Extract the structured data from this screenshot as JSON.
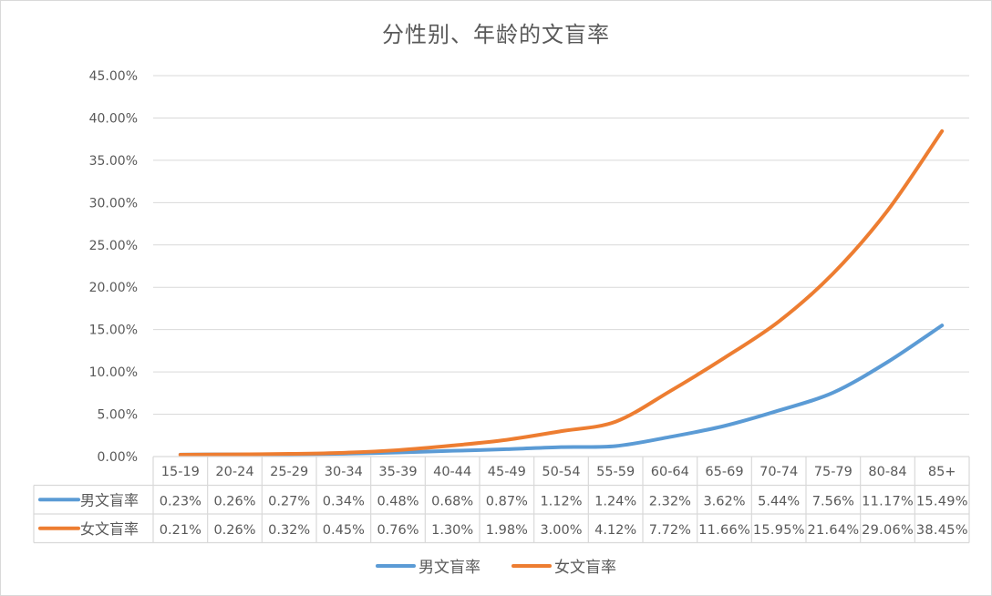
{
  "chart_data": {
    "type": "line",
    "title": "分性别、年龄的文盲率",
    "xlabel": "",
    "ylabel": "",
    "categories": [
      "15-19",
      "20-24",
      "25-29",
      "30-34",
      "35-39",
      "40-44",
      "45-49",
      "50-54",
      "55-59",
      "60-64",
      "65-69",
      "70-74",
      "75-79",
      "80-84",
      "85+"
    ],
    "series": [
      {
        "name": "男文盲率",
        "color": "#5b9bd5",
        "values": [
          0.23,
          0.26,
          0.27,
          0.34,
          0.48,
          0.68,
          0.87,
          1.12,
          1.24,
          2.32,
          3.62,
          5.44,
          7.56,
          11.17,
          15.49
        ],
        "labels": [
          "0.23%",
          "0.26%",
          "0.27%",
          "0.34%",
          "0.48%",
          "0.68%",
          "0.87%",
          "1.12%",
          "1.24%",
          "2.32%",
          "3.62%",
          "5.44%",
          "7.56%",
          "11.17%",
          "15.49%"
        ]
      },
      {
        "name": "女文盲率",
        "color": "#ed7d31",
        "values": [
          0.21,
          0.26,
          0.32,
          0.45,
          0.76,
          1.3,
          1.98,
          3.0,
          4.12,
          7.72,
          11.66,
          15.95,
          21.64,
          29.06,
          38.45
        ],
        "labels": [
          "0.21%",
          "0.26%",
          "0.32%",
          "0.45%",
          "0.76%",
          "1.30%",
          "1.98%",
          "3.00%",
          "4.12%",
          "7.72%",
          "11.66%",
          "15.95%",
          "21.64%",
          "29.06%",
          "38.45%"
        ]
      }
    ],
    "ylim": [
      0,
      45
    ],
    "yticks": [
      "0.00%",
      "5.00%",
      "10.00%",
      "15.00%",
      "20.00%",
      "25.00%",
      "30.00%",
      "35.00%",
      "40.00%",
      "45.00%"
    ],
    "grid": true,
    "legend_position": "bottom",
    "data_table": true
  },
  "legend": {
    "male_label": "男文盲率",
    "female_label": "女文盲率"
  }
}
